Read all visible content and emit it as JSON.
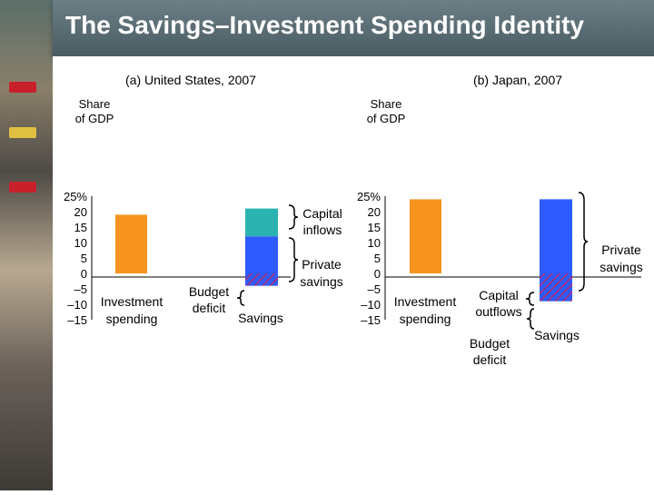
{
  "slide": {
    "title": "The Savings–Investment Spending Identity"
  },
  "colors": {
    "investment": "#f7941d",
    "private_savings": "#2e5bff",
    "capital_inflows": "#2ab3b1",
    "budget_deficit_hatch": "#7a3fa0",
    "axis": "#000000"
  },
  "chart_data": [
    {
      "type": "bar",
      "panel_title": "(a) United States, 2007",
      "ylabel": "Share of GDP",
      "ylim": [
        -15,
        25
      ],
      "yticks": [
        "25%",
        "20",
        "15",
        "10",
        "5",
        "0",
        "–5",
        "–10",
        "–15"
      ],
      "categories": [
        "Investment spending",
        "Savings"
      ],
      "series": [
        {
          "name": "Investment spending",
          "stack": "Investment spending",
          "range": [
            0,
            19
          ]
        },
        {
          "name": "Private savings",
          "stack": "Savings",
          "range": [
            -4,
            12
          ]
        },
        {
          "name": "Capital inflows",
          "stack": "Savings",
          "range": [
            12,
            21
          ]
        },
        {
          "name": "Budget deficit",
          "stack": "Savings",
          "range": [
            -4,
            0
          ],
          "hatched": true
        }
      ],
      "labels": {
        "investment": "Investment",
        "investment2": "spending",
        "capital_inflows_1": "Capital",
        "capital_inflows_2": "inflows",
        "private_savings_1": "Private",
        "private_savings_2": "savings",
        "budget_deficit_1": "Budget",
        "budget_deficit_2": "deficit",
        "savings": "Savings"
      }
    },
    {
      "type": "bar",
      "panel_title": "(b) Japan, 2007",
      "ylabel": "Share of GDP",
      "ylim": [
        -15,
        25
      ],
      "yticks": [
        "25%",
        "20",
        "15",
        "10",
        "5",
        "0",
        "–5",
        "–10",
        "–15"
      ],
      "categories": [
        "Investment spending",
        "Savings"
      ],
      "series": [
        {
          "name": "Investment spending",
          "stack": "Investment spending",
          "range": [
            0,
            24
          ]
        },
        {
          "name": "Private savings",
          "stack": "Savings",
          "range": [
            -9,
            24
          ]
        },
        {
          "name": "Capital outflows",
          "stack": "Savings",
          "range": [
            -5,
            0
          ],
          "hatched": true
        },
        {
          "name": "Budget deficit",
          "stack": "Savings",
          "range": [
            -9,
            -5
          ],
          "hatched": true
        }
      ],
      "labels": {
        "investment": "Investment",
        "investment2": "spending",
        "capital_outflows_1": "Capital",
        "capital_outflows_2": "outflows",
        "private_savings_1": "Private",
        "private_savings_2": "savings",
        "budget_deficit_1": "Budget",
        "budget_deficit_2": "deficit",
        "savings": "Savings"
      }
    }
  ]
}
